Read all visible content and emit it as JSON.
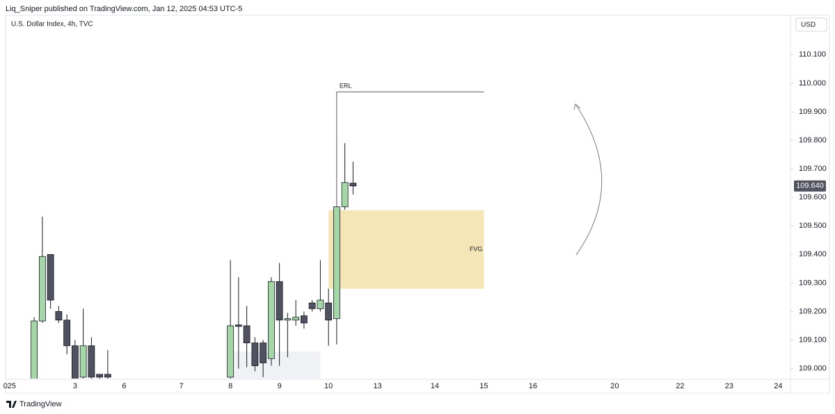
{
  "chart_data": {
    "type": "candlestick",
    "header": "Liq_Sniper published on TradingView.com, Jan 12, 2025 04:53 UTC-5",
    "title": "U.S. Dollar Index, 4h, TVC",
    "currency": "USD",
    "brand": "TradingView",
    "up_color": "#a5d6a7",
    "down_color": "#50525f",
    "candles": {
      "x": [
        3,
        4,
        5,
        6,
        7,
        8,
        9,
        10,
        11,
        12,
        27,
        28,
        29,
        30,
        31,
        32,
        33,
        34,
        35,
        36,
        37,
        38,
        39,
        40,
        41,
        42
      ],
      "open": [
        108.95,
        109.167,
        109.4,
        109.2,
        109.17,
        109.08,
        108.97,
        109.08,
        108.98,
        108.98,
        108.97,
        109.153,
        109.15,
        109.09,
        109.09,
        109.035,
        109.305,
        109.17,
        109.17,
        109.185,
        109.23,
        109.21,
        109.23,
        109.175,
        109.567,
        109.65
      ],
      "high": [
        109.18,
        109.533,
        109.4,
        109.22,
        109.19,
        109.1,
        109.21,
        109.11,
        108.98,
        109.065,
        109.38,
        109.32,
        109.22,
        109.11,
        109.1,
        109.32,
        109.37,
        109.195,
        109.24,
        109.2,
        109.24,
        109.38,
        109.28,
        109.567,
        109.79,
        109.725
      ],
      "low": [
        108.9,
        109.16,
        109.21,
        109.16,
        109.05,
        108.95,
        108.95,
        108.95,
        108.96,
        108.95,
        108.95,
        109.0,
        109.005,
        108.99,
        108.97,
        109.01,
        109.01,
        109.04,
        109.15,
        109.14,
        109.2,
        109.2,
        109.08,
        109.085,
        109.557,
        109.61
      ],
      "close": [
        109.167,
        109.393,
        109.24,
        109.17,
        109.08,
        108.96,
        109.08,
        108.97,
        108.97,
        108.97,
        109.15,
        109.148,
        109.09,
        109.01,
        109.02,
        109.305,
        109.17,
        109.175,
        109.18,
        109.16,
        109.21,
        109.24,
        109.17,
        109.567,
        109.652,
        109.64
      ]
    },
    "xlim": [
      -0.5,
      95.5
    ],
    "xticks": [
      {
        "value": 0,
        "label": "025"
      },
      {
        "value": 8,
        "label": "3"
      },
      {
        "value": 14,
        "label": "6"
      },
      {
        "value": 21,
        "label": "7"
      },
      {
        "value": 27,
        "label": "8"
      },
      {
        "value": 33,
        "label": "9"
      },
      {
        "value": 39,
        "label": "10"
      },
      {
        "value": 45,
        "label": "13"
      },
      {
        "value": 52,
        "label": "14"
      },
      {
        "value": 58,
        "label": "15"
      },
      {
        "value": 64,
        "label": "16"
      },
      {
        "value": 74,
        "label": "20"
      },
      {
        "value": 82,
        "label": "22"
      },
      {
        "value": 88,
        "label": "23"
      },
      {
        "value": 94,
        "label": "24"
      }
    ],
    "ylim": [
      108.965,
      110.175
    ],
    "yticks": [
      {
        "value": 109.0,
        "label": "109.000"
      },
      {
        "value": 109.1,
        "label": "109.100"
      },
      {
        "value": 109.2,
        "label": "109.200"
      },
      {
        "value": 109.3,
        "label": "109.300"
      },
      {
        "value": 109.4,
        "label": "109.400"
      },
      {
        "value": 109.5,
        "label": "109.500"
      },
      {
        "value": 109.6,
        "label": "109.600"
      },
      {
        "value": 109.7,
        "label": "109.700"
      },
      {
        "value": 109.8,
        "label": "109.800"
      },
      {
        "value": 109.9,
        "label": "109.900"
      },
      {
        "value": 110.0,
        "label": "110.000"
      },
      {
        "value": 110.1,
        "label": "110.100"
      }
    ],
    "last_price": {
      "value": 109.64,
      "label": "109.640"
    },
    "level": {
      "label": "ERL",
      "value": 109.97,
      "x": [
        40,
        58
      ]
    },
    "zones": [
      {
        "label": "FVG",
        "low": 109.28,
        "high": 109.555,
        "x": [
          39,
          58
        ],
        "color": "#f5e6b8"
      },
      {
        "low": 108.965,
        "high": 109.06,
        "x": [
          27,
          38
        ],
        "color": "#f0f1f4"
      }
    ]
  }
}
